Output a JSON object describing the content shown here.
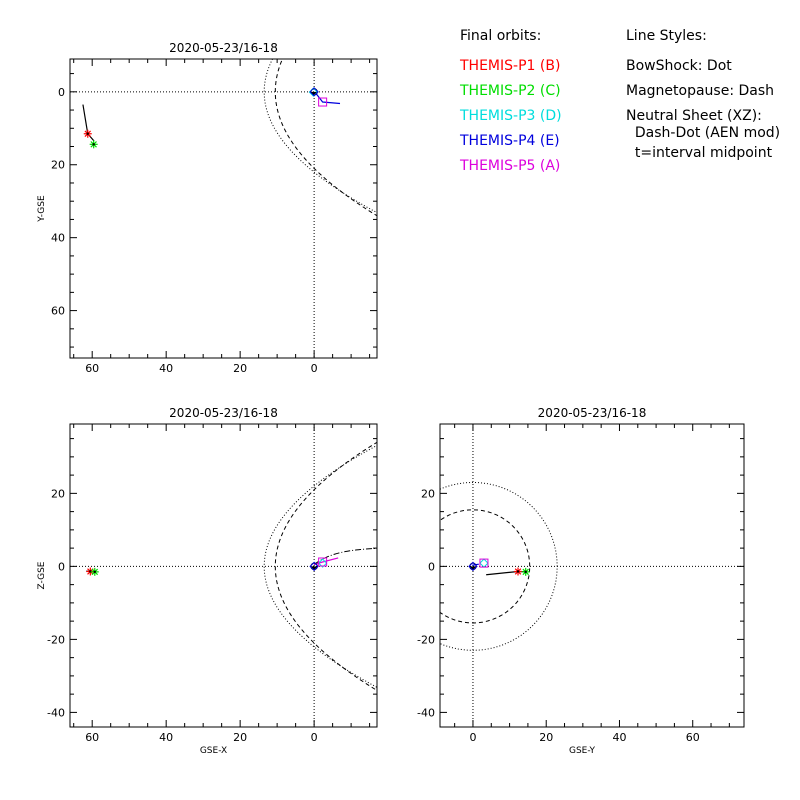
{
  "legend": {
    "orbits_title": "Final orbits:",
    "probes": [
      {
        "label": "THEMIS-P1 (B)",
        "color": "#ff0000"
      },
      {
        "label": "THEMIS-P2 (C)",
        "color": "#00dd00"
      },
      {
        "label": "THEMIS-P3 (D)",
        "color": "#00dddd"
      },
      {
        "label": "THEMIS-P4 (E)",
        "color": "#0000dd"
      },
      {
        "label": "THEMIS-P5 (A)",
        "color": "#dd00dd"
      }
    ],
    "styles_title": "Line Styles:",
    "styles": [
      "BowShock: Dot",
      "Magnetopause: Dash",
      "Neutral Sheet (XZ):",
      "  Dash-Dot (AEN mod)",
      "  t=interval midpoint"
    ]
  },
  "chart_data": [
    {
      "type": "scatter",
      "title": "2020-05-23/16-18",
      "xlabel": "",
      "ylabel": "Y-GSE",
      "xlim": [
        66,
        -17
      ],
      "ylim": [
        -9,
        73
      ],
      "xticks": [
        60,
        40,
        20,
        0
      ],
      "yticks": [
        0,
        20,
        40,
        60
      ],
      "yaxis_inverted": true,
      "earth": [
        0,
        0
      ],
      "bowshock": "dot",
      "magnetopause": "dash",
      "tracks": [
        {
          "probe": "THEMIS-P1 (B)",
          "color": "#000000",
          "points": [
            [
              62.5,
              3.5
            ],
            [
              61.2,
              11.5
            ],
            [
              59.5,
              13.5
            ]
          ]
        },
        {
          "probe": "THEMIS-P5 (A)",
          "color": "#0000dd",
          "points": [
            [
              -0.3,
              0.2
            ],
            [
              -2.3,
              2.8
            ],
            [
              -7,
              3.2
            ]
          ]
        }
      ],
      "markers": [
        {
          "label": "THEMIS-P1 (B)",
          "x": 61.2,
          "y": 11.5
        },
        {
          "label": "THEMIS-P2 (C)",
          "x": 59.6,
          "y": 14.4
        },
        {
          "label": "THEMIS-P3 (D)",
          "x": 0.2,
          "y": 0.1
        },
        {
          "label": "THEMIS-P4 (E)",
          "x": 0,
          "y": 0
        },
        {
          "label": "THEMIS-P5 (A)",
          "x": -2.3,
          "y": 2.8
        }
      ]
    },
    {
      "type": "scatter",
      "title": "2020-05-23/16-18",
      "xlabel": "GSE-X",
      "ylabel": "Z-GSE",
      "xlim": [
        66,
        -17
      ],
      "ylim": [
        -44,
        39
      ],
      "xticks": [
        60,
        40,
        20,
        0
      ],
      "yticks": [
        20,
        0,
        -20,
        -40
      ],
      "earth": [
        0,
        0
      ],
      "bowshock": "dot",
      "magnetopause": "dash",
      "neutral_sheet": "dash-dot",
      "tracks": [
        {
          "probe": "THEMIS-P1 (B)",
          "color": "#000000",
          "points": [
            [
              61.6,
              -1.3
            ],
            [
              59.8,
              -1.5
            ]
          ]
        },
        {
          "probe": "THEMIS-P5 (A)",
          "color": "#dd00dd",
          "points": [
            [
              0,
              0.5
            ],
            [
              -2.3,
              1.2
            ],
            [
              -6.5,
              2.3
            ]
          ]
        }
      ],
      "markers": [
        {
          "label": "THEMIS-P1 (B)",
          "x": 60.5,
          "y": -1.4
        },
        {
          "label": "THEMIS-P2 (C)",
          "x": 59.3,
          "y": -1.5
        },
        {
          "label": "THEMIS-P3 (D)",
          "x": -2.3,
          "y": 0.9
        },
        {
          "label": "THEMIS-P4 (E)",
          "x": 0,
          "y": 0
        },
        {
          "label": "THEMIS-P5 (A)",
          "x": -2.3,
          "y": 1.2
        }
      ]
    },
    {
      "type": "scatter",
      "title": "2020-05-23/16-18",
      "xlabel": "GSE-Y",
      "ylabel": "",
      "xlim": [
        -9,
        74
      ],
      "ylim": [
        -44,
        39
      ],
      "xticks": [
        0,
        20,
        40,
        60
      ],
      "yticks": [
        20,
        0,
        -20,
        -40
      ],
      "earth": [
        0,
        0
      ],
      "bowshock": "dot",
      "magnetopause": "dash",
      "tracks": [
        {
          "probe": "THEMIS-P1 (B)",
          "color": "#000000",
          "points": [
            [
              3.6,
              -2.3
            ],
            [
              12.3,
              -1.4
            ],
            [
              14.6,
              -1.5
            ]
          ]
        },
        {
          "probe": "THEMIS-P5 (A)",
          "color": "#0000dd",
          "points": [
            [
              -0.2,
              0.3
            ],
            [
              1.6,
              0.6
            ]
          ]
        }
      ],
      "markers": [
        {
          "label": "THEMIS-P1 (B)",
          "x": 12.3,
          "y": -1.4
        },
        {
          "label": "THEMIS-P2 (C)",
          "x": 14.4,
          "y": -1.5
        },
        {
          "label": "THEMIS-P3 (D)",
          "x": 3.0,
          "y": 0.9
        },
        {
          "label": "THEMIS-P4 (E)",
          "x": 0,
          "y": 0
        },
        {
          "label": "THEMIS-P5 (A)",
          "x": 3.0,
          "y": 0.9
        }
      ]
    }
  ]
}
